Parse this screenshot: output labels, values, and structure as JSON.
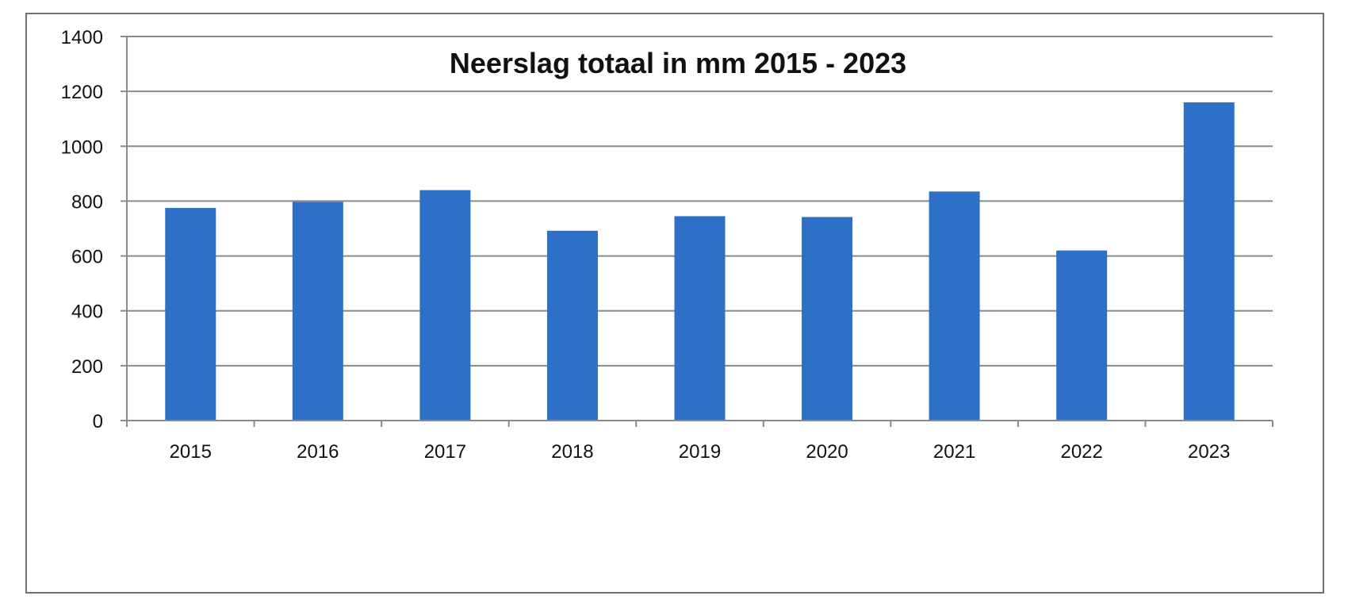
{
  "chart_data": {
    "type": "bar",
    "title": "Neerslag totaal in mm 2015 - 2023",
    "xlabel": "",
    "ylabel": "",
    "categories": [
      "2015",
      "2016",
      "2017",
      "2018",
      "2019",
      "2020",
      "2021",
      "2022",
      "2023"
    ],
    "values": [
      775,
      797,
      840,
      692,
      745,
      742,
      835,
      620,
      1160
    ],
    "ylim": [
      0,
      1400
    ],
    "yticks": [
      0,
      200,
      400,
      600,
      800,
      1000,
      1200,
      1400
    ],
    "grid": true,
    "legend": "none",
    "bar_color": "#2e6fc7"
  }
}
